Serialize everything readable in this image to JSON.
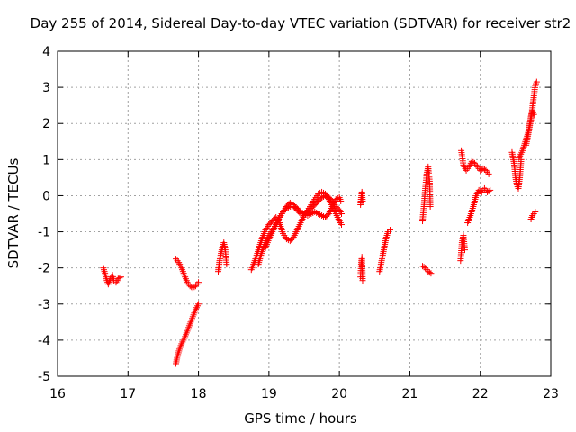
{
  "chart_data": {
    "type": "scatter",
    "title": "Day 255 of 2014, Sidereal Day-to-day VTEC variation (SDTVAR) for receiver str2",
    "xlabel": "GPS time / hours",
    "ylabel": "SDTVAR / TECUs",
    "xlim": [
      16,
      23
    ],
    "ylim": [
      -5,
      4
    ],
    "x_ticks": [
      "16",
      "17",
      "18",
      "19",
      "20",
      "21",
      "22",
      "23"
    ],
    "y_ticks": [
      "-5",
      "-4",
      "-3",
      "-2",
      "-1",
      "0",
      "1",
      "2",
      "3",
      "4"
    ],
    "grid": true,
    "marker": "plus",
    "color": "#ff0000",
    "series": [
      {
        "segments": [
          [
            [
              16.65,
              -2.0
            ],
            [
              16.68,
              -2.2
            ],
            [
              16.7,
              -2.35
            ],
            [
              16.72,
              -2.45
            ],
            [
              16.75,
              -2.3
            ],
            [
              16.78,
              -2.2
            ],
            [
              16.8,
              -2.35
            ],
            [
              16.83,
              -2.4
            ],
            [
              16.86,
              -2.3
            ],
            [
              16.9,
              -2.25
            ]
          ],
          [
            [
              17.68,
              -1.75
            ],
            [
              17.72,
              -1.85
            ],
            [
              17.76,
              -2.0
            ],
            [
              17.8,
              -2.2
            ],
            [
              17.84,
              -2.4
            ],
            [
              17.88,
              -2.5
            ],
            [
              17.92,
              -2.55
            ],
            [
              17.96,
              -2.5
            ],
            [
              18.0,
              -2.4
            ]
          ],
          [
            [
              17.68,
              -4.65
            ],
            [
              17.7,
              -4.45
            ],
            [
              17.73,
              -4.25
            ],
            [
              17.76,
              -4.1
            ],
            [
              17.8,
              -3.95
            ],
            [
              17.84,
              -3.75
            ],
            [
              17.88,
              -3.55
            ],
            [
              17.92,
              -3.35
            ],
            [
              17.96,
              -3.15
            ],
            [
              18.0,
              -3.0
            ]
          ],
          [
            [
              18.28,
              -2.1
            ],
            [
              18.3,
              -1.8
            ],
            [
              18.33,
              -1.5
            ],
            [
              18.36,
              -1.3
            ],
            [
              18.38,
              -1.5
            ],
            [
              18.4,
              -1.9
            ]
          ],
          [
            [
              18.75,
              -2.05
            ],
            [
              18.8,
              -1.8
            ],
            [
              18.85,
              -1.5
            ],
            [
              18.9,
              -1.2
            ],
            [
              18.95,
              -0.95
            ],
            [
              19.0,
              -0.8
            ],
            [
              19.05,
              -0.7
            ],
            [
              19.1,
              -0.6
            ],
            [
              19.15,
              -0.75
            ],
            [
              19.2,
              -1.05
            ],
            [
              19.25,
              -1.2
            ],
            [
              19.3,
              -1.25
            ],
            [
              19.35,
              -1.15
            ],
            [
              19.4,
              -0.95
            ],
            [
              19.45,
              -0.75
            ],
            [
              19.5,
              -0.55
            ],
            [
              19.55,
              -0.4
            ],
            [
              19.6,
              -0.25
            ],
            [
              19.65,
              -0.1
            ],
            [
              19.7,
              0.05
            ],
            [
              19.75,
              0.1
            ],
            [
              19.8,
              0.05
            ],
            [
              19.85,
              -0.05
            ],
            [
              19.9,
              -0.15
            ],
            [
              19.95,
              -0.3
            ],
            [
              20.0,
              -0.4
            ],
            [
              20.03,
              -0.5
            ]
          ],
          [
            [
              18.85,
              -1.9
            ],
            [
              18.9,
              -1.55
            ],
            [
              18.95,
              -1.3
            ],
            [
              19.0,
              -1.1
            ],
            [
              19.05,
              -0.95
            ],
            [
              19.1,
              -0.8
            ],
            [
              19.15,
              -0.6
            ],
            [
              19.2,
              -0.45
            ],
            [
              19.25,
              -0.35
            ],
            [
              19.3,
              -0.3
            ],
            [
              19.35,
              -0.3
            ],
            [
              19.4,
              -0.35
            ],
            [
              19.45,
              -0.45
            ],
            [
              19.5,
              -0.5
            ],
            [
              19.55,
              -0.55
            ],
            [
              19.6,
              -0.5
            ],
            [
              19.65,
              -0.45
            ],
            [
              19.7,
              -0.5
            ],
            [
              19.75,
              -0.55
            ],
            [
              19.8,
              -0.6
            ],
            [
              19.85,
              -0.5
            ],
            [
              19.9,
              -0.3
            ],
            [
              19.95,
              -0.1
            ],
            [
              20.0,
              -0.05
            ],
            [
              20.02,
              -0.15
            ]
          ],
          [
            [
              18.95,
              -1.45
            ],
            [
              19.0,
              -1.2
            ],
            [
              19.05,
              -1.0
            ],
            [
              19.1,
              -0.8
            ],
            [
              19.15,
              -0.6
            ],
            [
              19.2,
              -0.45
            ],
            [
              19.25,
              -0.3
            ],
            [
              19.3,
              -0.2
            ],
            [
              19.35,
              -0.25
            ],
            [
              19.4,
              -0.4
            ],
            [
              19.45,
              -0.5
            ],
            [
              19.5,
              -0.5
            ],
            [
              19.55,
              -0.45
            ],
            [
              19.6,
              -0.35
            ],
            [
              19.65,
              -0.25
            ],
            [
              19.7,
              -0.15
            ],
            [
              19.75,
              -0.05
            ],
            [
              19.8,
              0.0
            ],
            [
              19.85,
              -0.1
            ],
            [
              19.9,
              -0.3
            ],
            [
              19.95,
              -0.5
            ],
            [
              20.0,
              -0.7
            ],
            [
              20.03,
              -0.8
            ]
          ],
          [
            [
              20.3,
              -2.25
            ],
            [
              20.31,
              -1.9
            ],
            [
              20.32,
              -1.7
            ],
            [
              20.33,
              -2.35
            ]
          ],
          [
            [
              20.3,
              -0.25
            ],
            [
              20.31,
              -0.05
            ],
            [
              20.32,
              0.1
            ],
            [
              20.33,
              -0.15
            ]
          ],
          [
            [
              20.57,
              -2.1
            ],
            [
              20.6,
              -1.8
            ],
            [
              20.63,
              -1.5
            ],
            [
              20.66,
              -1.2
            ],
            [
              20.69,
              -1.0
            ],
            [
              20.72,
              -0.95
            ]
          ],
          [
            [
              21.18,
              -0.7
            ],
            [
              21.2,
              -0.3
            ],
            [
              21.22,
              0.2
            ],
            [
              21.24,
              0.6
            ],
            [
              21.26,
              0.8
            ],
            [
              21.28,
              0.4
            ],
            [
              21.29,
              -0.3
            ]
          ],
          [
            [
              21.18,
              -1.95
            ],
            [
              21.22,
              -2.0
            ],
            [
              21.26,
              -2.1
            ],
            [
              21.3,
              -2.15
            ]
          ],
          [
            [
              21.72,
              -1.8
            ],
            [
              21.74,
              -1.3
            ],
            [
              21.76,
              -1.1
            ],
            [
              21.78,
              -1.5
            ]
          ],
          [
            [
              21.73,
              1.25
            ],
            [
              21.76,
              0.85
            ],
            [
              21.8,
              0.7
            ],
            [
              21.84,
              0.8
            ],
            [
              21.88,
              0.95
            ],
            [
              21.92,
              0.9
            ],
            [
              21.96,
              0.8
            ],
            [
              22.0,
              0.7
            ],
            [
              22.04,
              0.75
            ],
            [
              22.08,
              0.7
            ],
            [
              22.12,
              0.6
            ]
          ],
          [
            [
              21.82,
              -0.75
            ],
            [
              21.86,
              -0.55
            ],
            [
              21.9,
              -0.3
            ],
            [
              21.94,
              0.0
            ],
            [
              21.98,
              0.15
            ],
            [
              22.02,
              0.1
            ],
            [
              22.06,
              0.2
            ],
            [
              22.1,
              0.1
            ],
            [
              22.14,
              0.15
            ]
          ],
          [
            [
              22.45,
              1.2
            ],
            [
              22.48,
              0.9
            ],
            [
              22.5,
              0.5
            ],
            [
              22.52,
              0.3
            ],
            [
              22.54,
              0.2
            ],
            [
              22.56,
              0.5
            ],
            [
              22.58,
              1.0
            ]
          ],
          [
            [
              22.55,
              1.05
            ],
            [
              22.6,
              1.25
            ],
            [
              22.64,
              1.5
            ],
            [
              22.68,
              1.75
            ],
            [
              22.72,
              2.1
            ],
            [
              22.75,
              2.6
            ],
            [
              22.78,
              3.05
            ],
            [
              22.8,
              3.15
            ]
          ],
          [
            [
              22.65,
              1.4
            ],
            [
              22.68,
              1.7
            ],
            [
              22.7,
              1.95
            ],
            [
              22.72,
              2.2
            ],
            [
              22.74,
              2.35
            ],
            [
              22.76,
              2.25
            ]
          ],
          [
            [
              22.72,
              -0.65
            ],
            [
              22.74,
              -0.55
            ],
            [
              22.76,
              -0.5
            ],
            [
              22.78,
              -0.45
            ]
          ]
        ]
      }
    ]
  }
}
